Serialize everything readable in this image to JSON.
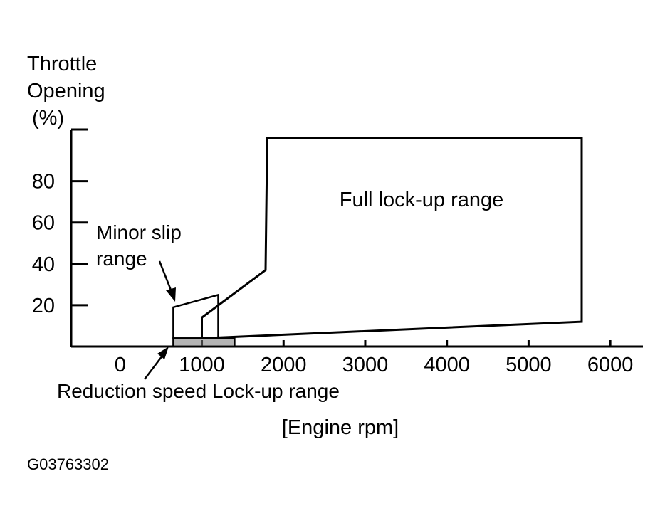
{
  "chart_data": {
    "type": "area",
    "title": "",
    "ylabel_lines": [
      "Throttle",
      "Opening",
      "(%)"
    ],
    "xlabel": "[Engine rpm]",
    "x_ticks": [
      0,
      1000,
      2000,
      3000,
      4000,
      5000,
      6000
    ],
    "y_ticks": [
      20,
      40,
      60,
      80
    ],
    "xlim": [
      -600,
      6400
    ],
    "ylim": [
      0,
      105
    ],
    "regions": [
      {
        "name": "Full lock-up range",
        "label": "Full lock-up range",
        "label_at": [
          3900,
          70
        ],
        "polygon": [
          [
            1800,
            101
          ],
          [
            5650,
            101
          ],
          [
            5650,
            12
          ],
          [
            1000,
            4
          ],
          [
            1000,
            14
          ],
          [
            1780,
            37
          ]
        ]
      },
      {
        "name": "Minor slip range",
        "label_lines": [
          "Minor slip",
          "range"
        ],
        "polygon": [
          [
            650,
            19
          ],
          [
            1200,
            25
          ],
          [
            1200,
            4
          ],
          [
            650,
            4
          ]
        ]
      },
      {
        "name": "Reduction speed Lock-up range",
        "label": "Reduction speed Lock-up range",
        "polygon": [
          [
            650,
            4
          ],
          [
            1400,
            4
          ],
          [
            1400,
            0
          ],
          [
            650,
            0
          ]
        ]
      }
    ],
    "grid": false,
    "legend": "none"
  },
  "figure_id": "G03763302"
}
